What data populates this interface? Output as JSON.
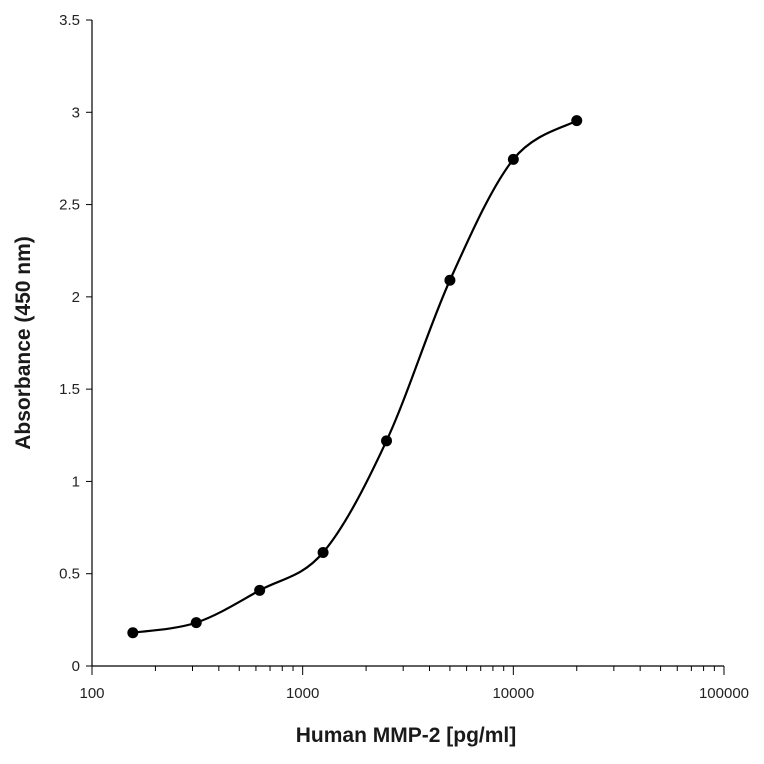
{
  "chart_data": {
    "type": "scatter",
    "xlabel": "Human MMP-2 [pg/ml]",
    "ylabel": "Absorbance (450 nm)",
    "x_scale": "log",
    "xlim": [
      100,
      100000
    ],
    "ylim": [
      0,
      3.5
    ],
    "x_ticks": [
      100,
      1000,
      10000,
      100000
    ],
    "x_tick_labels": [
      "100",
      "1000",
      "10000",
      "100000"
    ],
    "y_ticks": [
      0,
      0.5,
      1,
      1.5,
      2,
      2.5,
      3,
      3.5
    ],
    "y_tick_labels": [
      "0",
      "0.5",
      "1",
      "1.5",
      "2",
      "2.5",
      "3",
      "3.5"
    ],
    "grid": false,
    "legend": "none",
    "series": [
      {
        "marker": "filled-circle",
        "line": "smooth",
        "color": "#000000",
        "x": [
          156.25,
          312.5,
          625,
          1250,
          2500,
          5000,
          10000,
          20000
        ],
        "y": [
          0.18,
          0.235,
          0.41,
          0.615,
          1.22,
          2.09,
          2.745,
          2.955
        ]
      }
    ]
  }
}
